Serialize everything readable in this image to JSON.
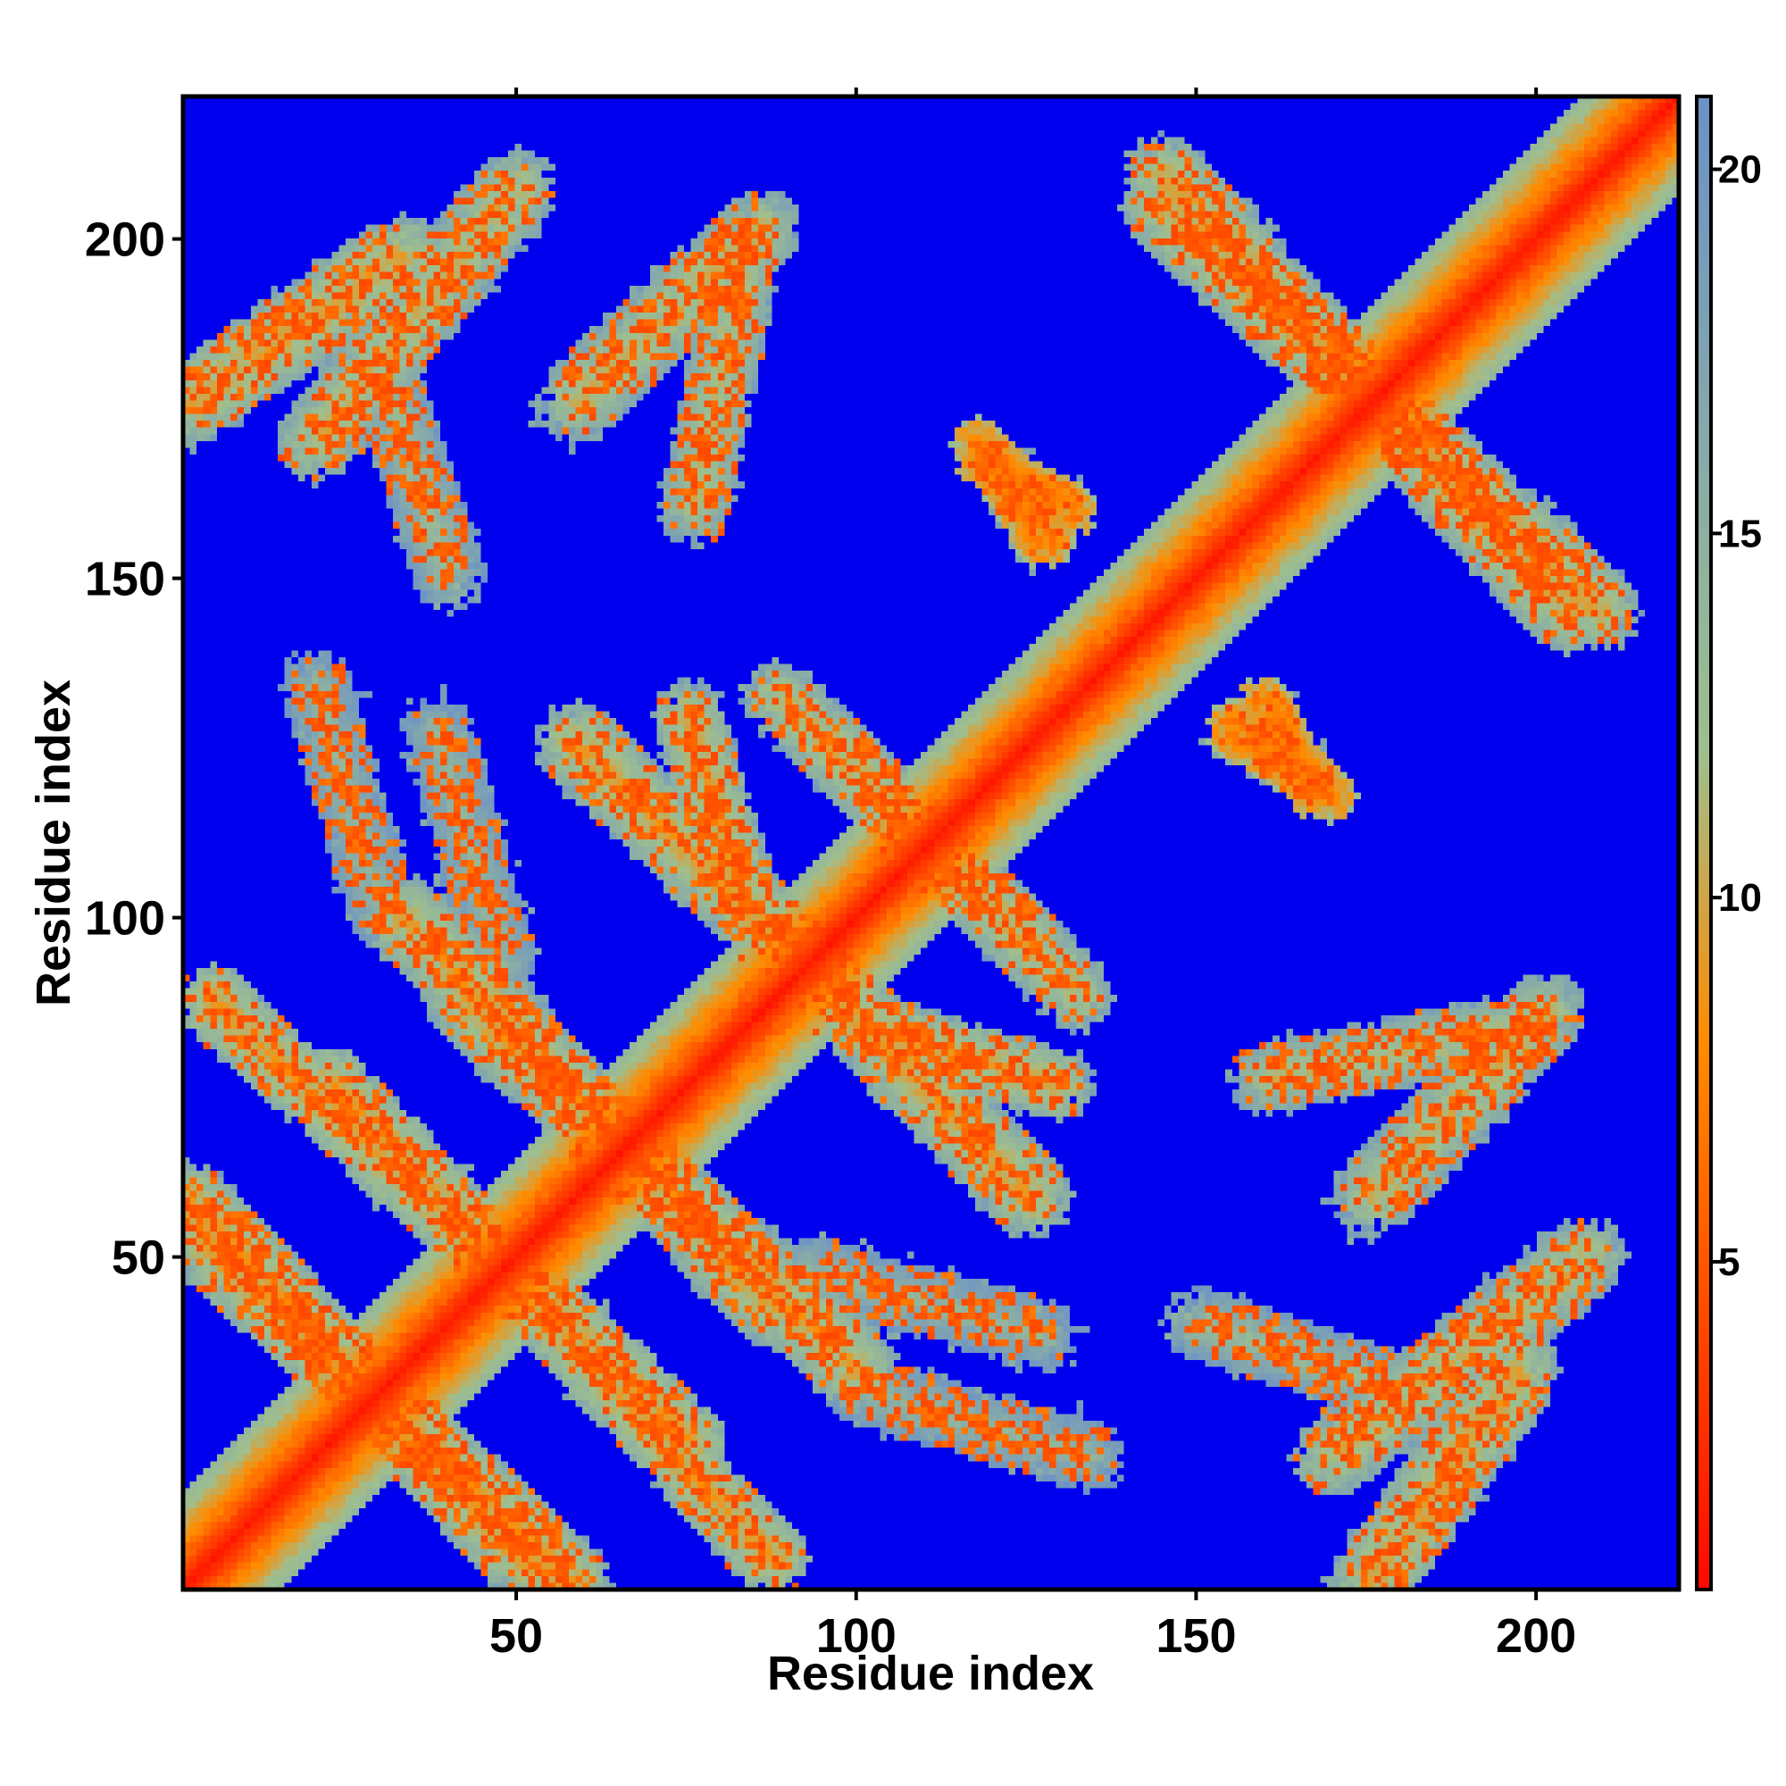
{
  "chart_data": {
    "type": "heatmap",
    "title": "",
    "xlabel": "Residue index",
    "ylabel": "Residue index",
    "n_residues": 221,
    "xlim": [
      1,
      221
    ],
    "ylim": [
      1,
      221
    ],
    "x_ticks": [
      50,
      100,
      150,
      200
    ],
    "y_ticks": [
      50,
      100,
      150,
      200
    ],
    "colorbar": {
      "ticks": [
        5,
        10,
        15,
        20
      ],
      "range": [
        0.5,
        21
      ],
      "colors": [
        "#ff0000",
        "#ff8c00",
        "#9fbf8f",
        "#6b92c7"
      ],
      "color_stops": [
        0,
        8,
        12,
        21
      ],
      "background_color": "#0000ee"
    },
    "features": {
      "main_diagonal": {
        "from": [
          1,
          1
        ],
        "to": [
          221,
          221
        ],
        "value": 1.5
      },
      "contact_bands": [
        {
          "from": [
            1,
            58
          ],
          "to": [
            52,
            4
          ],
          "width": 6,
          "value": 9.5
        },
        {
          "from": [
            33,
            100
          ],
          "to": [
            88,
            42
          ],
          "width": 6,
          "value": 10
        },
        {
          "from": [
            58,
            126
          ],
          "to": [
            98,
            88
          ],
          "width": 6,
          "value": 10
        },
        {
          "from": [
            95,
            126
          ],
          "to": [
            133,
            88
          ],
          "width": 5,
          "value": 11
        },
        {
          "from": [
            22,
            76
          ],
          "to": [
            88,
            4
          ],
          "width": 5,
          "value": 10
        },
        {
          "from": [
            100,
            84
          ],
          "to": [
            130,
            75
          ],
          "width": 5,
          "value": 10.5
        },
        {
          "from": [
            1,
            176
          ],
          "to": [
            33,
            198
          ],
          "width": 6,
          "value": 10
        },
        {
          "from": [
            58,
            176
          ],
          "to": [
            86,
            202
          ],
          "width": 6,
          "value": 11
        },
        {
          "from": [
            145,
            205
          ],
          "to": [
            210,
            145
          ],
          "width": 6,
          "value": 10
        },
        {
          "from": [
            118,
            168
          ],
          "to": [
            132,
            160
          ],
          "width": 4,
          "value": 7
        },
        {
          "from": [
            155,
            128
          ],
          "to": [
            170,
            118
          ],
          "width": 4,
          "value": 7
        },
        {
          "from": [
            170,
            20
          ],
          "to": [
            208,
            50
          ],
          "width": 6,
          "value": 11
        },
        {
          "from": [
            160,
            76
          ],
          "to": [
            200,
            84
          ],
          "width": 5,
          "value": 12
        },
        {
          "from": [
            150,
            40
          ],
          "to": [
            180,
            30
          ],
          "width": 5,
          "value": 14
        },
        {
          "from": [
            100,
            30
          ],
          "to": [
            135,
            20
          ],
          "width": 5,
          "value": 15
        },
        {
          "from": [
            92,
            48
          ],
          "to": [
            128,
            38
          ],
          "width": 5,
          "value": 15
        }
      ]
    }
  }
}
